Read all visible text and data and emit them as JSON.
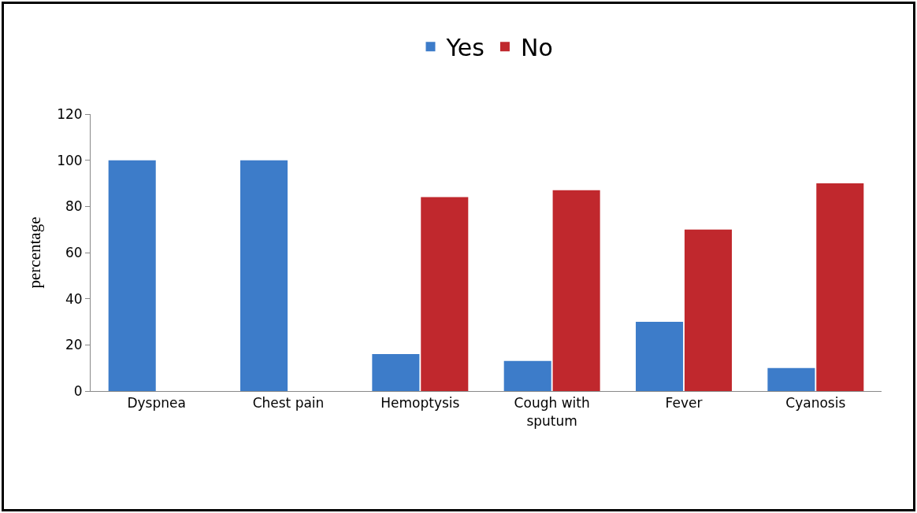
{
  "chart_data": {
    "type": "bar",
    "ylabel": "percentage",
    "categories": [
      "Dyspnea",
      "Chest pain",
      "Hemoptysis",
      "Cough with sputum",
      "Fever",
      "Cyanosis"
    ],
    "series": [
      {
        "name": "Yes",
        "color": "#3d7cc9",
        "values": [
          100,
          100,
          16,
          13,
          30,
          10
        ]
      },
      {
        "name": "No",
        "color": "#c0282d",
        "values": [
          0,
          0,
          84,
          87,
          70,
          90
        ]
      }
    ],
    "ylim": [
      0,
      120
    ],
    "yticks": [
      0,
      20,
      40,
      60,
      80,
      100,
      120
    ],
    "grid": false,
    "legend": "top"
  }
}
